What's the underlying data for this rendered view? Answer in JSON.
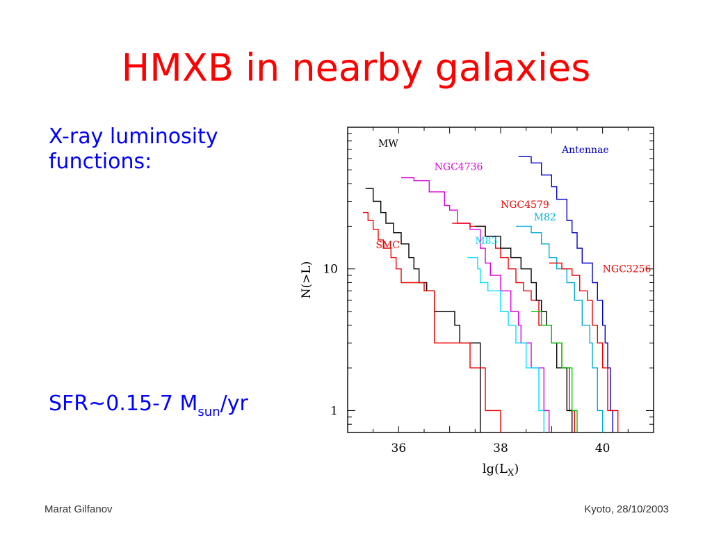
{
  "slide": {
    "title": "HMXB in nearby galaxies",
    "bullet1_line1": "X-ray luminosity",
    "bullet1_line2": "functions:",
    "sfr_prefix": "SFR~0.15-7 M",
    "sfr_subscript": "sun",
    "sfr_suffix": "/yr",
    "title_color": "#ff0000",
    "text_color": "#0000ff"
  },
  "footer": {
    "left": "Marat Gilfanov",
    "right": "Kyoto, 28/10/2003"
  },
  "chart_data": {
    "type": "line",
    "step": true,
    "xlabel": "lg(L",
    "xlabel_sub": "X",
    "xlabel_close": ")",
    "ylabel": "N(>L)",
    "xlim": [
      35,
      41
    ],
    "ylim": [
      0.7,
      100
    ],
    "yscale": "log",
    "x_ticks": [
      36,
      38,
      40
    ],
    "x_tick_labels": [
      "36",
      "38",
      "40"
    ],
    "y_ticks": [
      1,
      10
    ],
    "y_tick_labels": [
      "1",
      "10"
    ],
    "series": [
      {
        "name": "MW",
        "color": "#000000",
        "label_x": 35.6,
        "label_y": 73,
        "points": [
          [
            35.35,
            37
          ],
          [
            35.5,
            30
          ],
          [
            35.65,
            25
          ],
          [
            35.75,
            21
          ],
          [
            35.9,
            18
          ],
          [
            36.05,
            15
          ],
          [
            36.2,
            12
          ],
          [
            36.3,
            10
          ],
          [
            36.4,
            8
          ],
          [
            36.55,
            7
          ],
          [
            36.7,
            5
          ],
          [
            37.1,
            4
          ],
          [
            37.2,
            3
          ],
          [
            37.6,
            3
          ],
          [
            37.6,
            2
          ],
          [
            37.6,
            1
          ],
          [
            37.6,
            0.7
          ]
        ]
      },
      {
        "name": "SMC",
        "color": "#ee0000",
        "label_x": 35.55,
        "label_y": 14,
        "points": [
          [
            35.3,
            25
          ],
          [
            35.4,
            22
          ],
          [
            35.5,
            19
          ],
          [
            35.6,
            16
          ],
          [
            35.7,
            14
          ],
          [
            35.85,
            12
          ],
          [
            35.95,
            10
          ],
          [
            36.05,
            8
          ],
          [
            36.5,
            7
          ],
          [
            36.7,
            3
          ],
          [
            37.4,
            3
          ],
          [
            37.4,
            2
          ],
          [
            37.7,
            1
          ],
          [
            38.0,
            0.7
          ]
        ]
      },
      {
        "name": "Antennae",
        "color": "#0000cc",
        "label_x": 39.2,
        "label_y": 66,
        "points": [
          [
            38.35,
            62
          ],
          [
            38.6,
            56
          ],
          [
            38.8,
            46
          ],
          [
            39.0,
            38
          ],
          [
            39.1,
            31
          ],
          [
            39.3,
            22
          ],
          [
            39.4,
            18
          ],
          [
            39.5,
            14
          ],
          [
            39.6,
            12
          ],
          [
            39.6,
            11
          ],
          [
            39.8,
            8
          ],
          [
            39.9,
            6
          ],
          [
            40.0,
            4
          ],
          [
            40.05,
            3
          ],
          [
            40.1,
            2
          ],
          [
            40.15,
            1
          ],
          [
            40.2,
            0.7
          ]
        ]
      },
      {
        "name": "NGC4736",
        "color": "#dd00dd",
        "label_x": 36.7,
        "label_y": 50,
        "points": [
          [
            36.05,
            44
          ],
          [
            36.3,
            42
          ],
          [
            36.6,
            35
          ],
          [
            36.9,
            28
          ],
          [
            37.0,
            26
          ],
          [
            37.15,
            21
          ],
          [
            37.4,
            19
          ],
          [
            37.6,
            14
          ],
          [
            37.7,
            11
          ],
          [
            37.8,
            9
          ],
          [
            38.0,
            7
          ],
          [
            38.2,
            5
          ],
          [
            38.35,
            4
          ],
          [
            38.4,
            3
          ],
          [
            38.6,
            2
          ],
          [
            38.85,
            1
          ],
          [
            38.95,
            0.7
          ]
        ]
      },
      {
        "name": "NGC4579",
        "color": "#ee0000",
        "label_x": 38.0,
        "label_y": 27,
        "points": [
          [
            37.05,
            21
          ],
          [
            37.4,
            20
          ],
          [
            37.7,
            17
          ],
          [
            37.9,
            14
          ],
          [
            38.0,
            12
          ],
          [
            38.15,
            10
          ],
          [
            38.3,
            8
          ],
          [
            38.45,
            7
          ],
          [
            38.6,
            6
          ],
          [
            38.75,
            4
          ],
          [
            39.0,
            3
          ],
          [
            39.2,
            2
          ],
          [
            39.35,
            1
          ],
          [
            39.45,
            0.7
          ]
        ]
      },
      {
        "name": "M82",
        "color": "#00aadd",
        "label_x": 38.65,
        "label_y": 22,
        "points": [
          [
            38.3,
            20
          ],
          [
            38.6,
            18
          ],
          [
            38.8,
            15
          ],
          [
            38.95,
            12
          ],
          [
            39.1,
            10
          ],
          [
            39.3,
            8
          ],
          [
            39.45,
            6
          ],
          [
            39.6,
            4
          ],
          [
            39.75,
            3
          ],
          [
            39.8,
            2
          ],
          [
            39.9,
            1
          ],
          [
            40.0,
            0.7
          ]
        ]
      },
      {
        "name": "M83",
        "color": "#00ddff",
        "label_x": 37.5,
        "label_y": 15,
        "points": [
          [
            37.35,
            12
          ],
          [
            37.55,
            10
          ],
          [
            37.6,
            8
          ],
          [
            37.75,
            7
          ],
          [
            38.0,
            5
          ],
          [
            38.15,
            4
          ],
          [
            38.3,
            3
          ],
          [
            38.5,
            2
          ],
          [
            38.75,
            1
          ],
          [
            38.85,
            0.7
          ]
        ]
      },
      {
        "name": "NGC3256",
        "color": "#ee0000",
        "label_x": 40.0,
        "label_y": 9.5,
        "points": [
          [
            38.95,
            11
          ],
          [
            39.2,
            10
          ],
          [
            39.4,
            9
          ],
          [
            39.55,
            7
          ],
          [
            39.7,
            6
          ],
          [
            39.8,
            4
          ],
          [
            39.9,
            3
          ],
          [
            40.0,
            2
          ],
          [
            40.1,
            1
          ],
          [
            40.3,
            0.7
          ]
        ]
      },
      {
        "color": "#000000",
        "points": [
          [
            37.5,
            20
          ],
          [
            37.7,
            17
          ],
          [
            38.0,
            14
          ],
          [
            38.2,
            12
          ],
          [
            38.4,
            10
          ],
          [
            38.6,
            8
          ],
          [
            38.7,
            6
          ],
          [
            38.8,
            5
          ],
          [
            38.9,
            4
          ],
          [
            39.0,
            3
          ],
          [
            39.1,
            2
          ],
          [
            39.3,
            1
          ],
          [
            39.4,
            0.7
          ]
        ]
      },
      {
        "color": "#00cc00",
        "points": [
          [
            38.6,
            5
          ],
          [
            38.8,
            4
          ],
          [
            39.0,
            3
          ],
          [
            39.2,
            2
          ],
          [
            39.4,
            1
          ],
          [
            39.5,
            0.7
          ]
        ]
      }
    ]
  }
}
